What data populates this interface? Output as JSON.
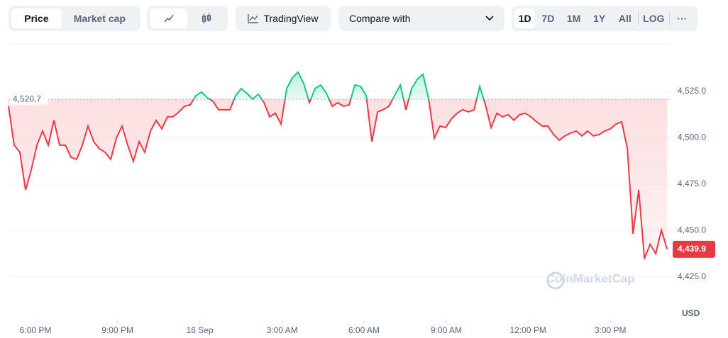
{
  "toolbar": {
    "tabs": [
      "Price",
      "Market cap"
    ],
    "tradingview": "TradingView",
    "compare": "Compare with",
    "ranges": [
      "1D",
      "7D",
      "1M",
      "1Y",
      "All"
    ],
    "log": "LOG",
    "more": "···"
  },
  "chart_data": {
    "type": "line",
    "watermark": "CoinMarketCap",
    "y_unit": "USD",
    "up_color": "#16c784",
    "down_color": "#ea3943",
    "baseline": {
      "value": 4520.7,
      "label": "4,520.7"
    },
    "last": {
      "value": 4439.9,
      "label": "4,439.9"
    },
    "xlim": [
      0,
      116.6
    ],
    "xticks": [
      {
        "value": 4.75,
        "label": "6:00 PM"
      },
      {
        "value": 19.2,
        "label": "9:00 PM"
      },
      {
        "value": 33.7,
        "label": "16 Sep"
      },
      {
        "value": 48.2,
        "label": "3:00 AM"
      },
      {
        "value": 62.6,
        "label": "6:00 AM"
      },
      {
        "value": 77.1,
        "label": "9:00 AM"
      },
      {
        "value": 91.5,
        "label": "12:00 PM"
      },
      {
        "value": 106,
        "label": "3:00 PM"
      }
    ],
    "ylim": [
      4420,
      4545
    ],
    "yticks": [
      {
        "value": 4425,
        "label": "4,425.0"
      },
      {
        "value": 4450,
        "label": "4,450.0"
      },
      {
        "value": 4475,
        "label": "4,475.0"
      },
      {
        "value": 4500,
        "label": "4,500.0"
      },
      {
        "value": 4525,
        "label": "4,525.0"
      }
    ],
    "grid": true,
    "values": [
      4517,
      4496,
      4492.2,
      4471.9,
      4482.6,
      4496,
      4503.6,
      4496,
      4509.4,
      4496,
      4496,
      4489.5,
      4488.4,
      4496,
      4506.3,
      4497.9,
      4494.1,
      4492.2,
      4488.4,
      4499.8,
      4506.3,
      4496,
      4487.2,
      4497.9,
      4492.2,
      4503.6,
      4509.4,
      4504.8,
      4511.3,
      4511.3,
      4513.9,
      4517,
      4517.7,
      4522.7,
      4524.6,
      4521.6,
      4519.7,
      4515.1,
      4515.1,
      4515.1,
      4522.7,
      4526.5,
      4523.9,
      4520.8,
      4523.5,
      4518.9,
      4511.3,
      4513.2,
      4507.4,
      4526.5,
      4532.3,
      4535.3,
      4529.2,
      4518.9,
      4526.5,
      4528.4,
      4523.9,
      4517,
      4518.9,
      4517,
      4517.7,
      4528.4,
      4527.7,
      4522.7,
      4497.9,
      4513.9,
      4515.1,
      4517,
      4522.7,
      4528.4,
      4515.1,
      4526.5,
      4531.5,
      4534.2,
      4520.8,
      4499.8,
      4506.3,
      4505.5,
      4510.1,
      4513.2,
      4515.1,
      4513.9,
      4515.1,
      4527.7,
      4517.7,
      4505.5,
      4513.2,
      4511.3,
      4512.4,
      4509.4,
      4512.4,
      4513.2,
      4511.3,
      4508.6,
      4506.3,
      4506.3,
      4501.7,
      4498.7,
      4501,
      4502.5,
      4503.6,
      4501,
      4503.6,
      4501,
      4501.7,
      4503.6,
      4504.8,
      4507.4,
      4508.6,
      4494.1,
      4448.3,
      4471.9,
      4434.9,
      4442.6,
      4437.6,
      4450.2,
      4439.9
    ]
  }
}
